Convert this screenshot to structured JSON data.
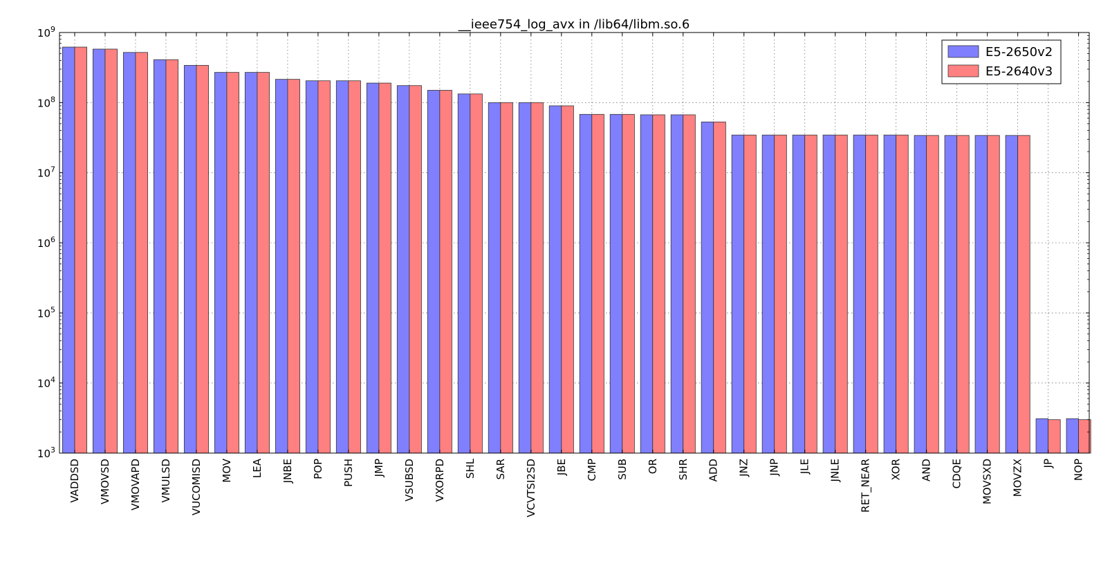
{
  "chart_data": {
    "type": "bar",
    "title": "__ieee754_log_avx in /lib64/libm.so.6",
    "xlabel": "",
    "ylabel": "",
    "yscale": "log",
    "ylim": [
      1000,
      1000000000
    ],
    "y_ticks": [
      {
        "value": 1000,
        "base": "10",
        "exp": "3"
      },
      {
        "value": 10000,
        "base": "10",
        "exp": "4"
      },
      {
        "value": 100000,
        "base": "10",
        "exp": "5"
      },
      {
        "value": 1000000,
        "base": "10",
        "exp": "6"
      },
      {
        "value": 10000000,
        "base": "10",
        "exp": "7"
      },
      {
        "value": 100000000,
        "base": "10",
        "exp": "8"
      },
      {
        "value": 1000000000,
        "base": "10",
        "exp": "9"
      }
    ],
    "grid": true,
    "legend_position": "top-right",
    "categories": [
      "VADDSD",
      "VMOVSD",
      "VMOVAPD",
      "VMULSD",
      "VUCOMISD",
      "MOV",
      "LEA",
      "JNBE",
      "POP",
      "PUSH",
      "JMP",
      "VSUBSD",
      "VXORPD",
      "SHL",
      "SAR",
      "VCVTSI2SD",
      "JBE",
      "CMP",
      "SUB",
      "OR",
      "SHR",
      "ADD",
      "JNZ",
      "JNP",
      "JLE",
      "JNLE",
      "RET_NEAR",
      "XOR",
      "AND",
      "CDQE",
      "MOVSXD",
      "MOVZX",
      "JP",
      "NOP"
    ],
    "series": [
      {
        "name": "E5-2650v2",
        "color": "#8080ff",
        "values": [
          620000000,
          580000000,
          520000000,
          410000000,
          340000000,
          270000000,
          270000000,
          215000000,
          205000000,
          205000000,
          190000000,
          175000000,
          150000000,
          133000000,
          100000000,
          100000000,
          90000000,
          68000000,
          68000000,
          67000000,
          67000000,
          53000000,
          34500000,
          34500000,
          34500000,
          34500000,
          34500000,
          34500000,
          34000000,
          34000000,
          34000000,
          34000000,
          3100,
          3100
        ]
      },
      {
        "name": "E5-2640v3",
        "color": "#ff8080",
        "values": [
          620000000,
          580000000,
          520000000,
          410000000,
          340000000,
          270000000,
          270000000,
          215000000,
          205000000,
          205000000,
          190000000,
          175000000,
          150000000,
          133000000,
          100000000,
          100000000,
          90000000,
          68000000,
          68000000,
          67000000,
          67000000,
          53000000,
          34500000,
          34500000,
          34500000,
          34500000,
          34500000,
          34500000,
          34000000,
          34000000,
          34000000,
          34000000,
          3000,
          3000
        ]
      }
    ]
  }
}
